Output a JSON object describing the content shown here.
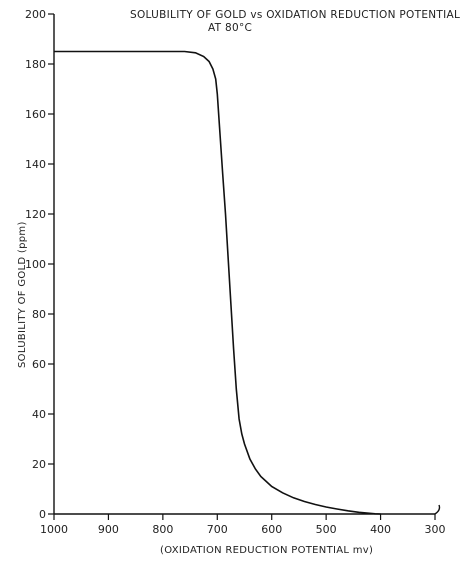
{
  "chart_data": {
    "type": "line",
    "title": "SOLUBILITY OF GOLD vs OXIDATION REDUCTION POTENTIAL",
    "subtitle": "AT 80°C",
    "xlabel": "(OXIDATION REDUCTION POTENTIAL mv)",
    "ylabel": "SOLUBILITY OF GOLD (ppm)",
    "xlim": [
      1000,
      300
    ],
    "ylim": [
      0,
      200
    ],
    "x_reversed": true,
    "xticks": [
      1000,
      900,
      800,
      700,
      600,
      500,
      400,
      300
    ],
    "yticks": [
      0,
      20,
      40,
      60,
      80,
      100,
      120,
      140,
      160,
      180,
      200
    ],
    "grid": false,
    "series": [
      {
        "x": [
          1000,
          950,
          900,
          850,
          800,
          760,
          740,
          725,
          715,
          708,
          703,
          700,
          695,
          690,
          685,
          680,
          675,
          670,
          665,
          660,
          655,
          650,
          640,
          630,
          620,
          610,
          600,
          580,
          560,
          540,
          520,
          500,
          480,
          460,
          440,
          420,
          410,
          400
        ],
        "y": [
          185,
          185,
          185,
          185,
          185,
          185,
          184.5,
          183,
          181,
          178,
          174,
          168,
          152,
          136,
          120,
          102,
          84,
          66,
          50,
          38,
          32,
          28,
          22,
          18,
          15,
          13,
          11,
          8.5,
          6.5,
          5,
          3.8,
          2.8,
          2,
          1.3,
          0.7,
          0.3,
          0.1,
          0
        ]
      }
    ]
  }
}
